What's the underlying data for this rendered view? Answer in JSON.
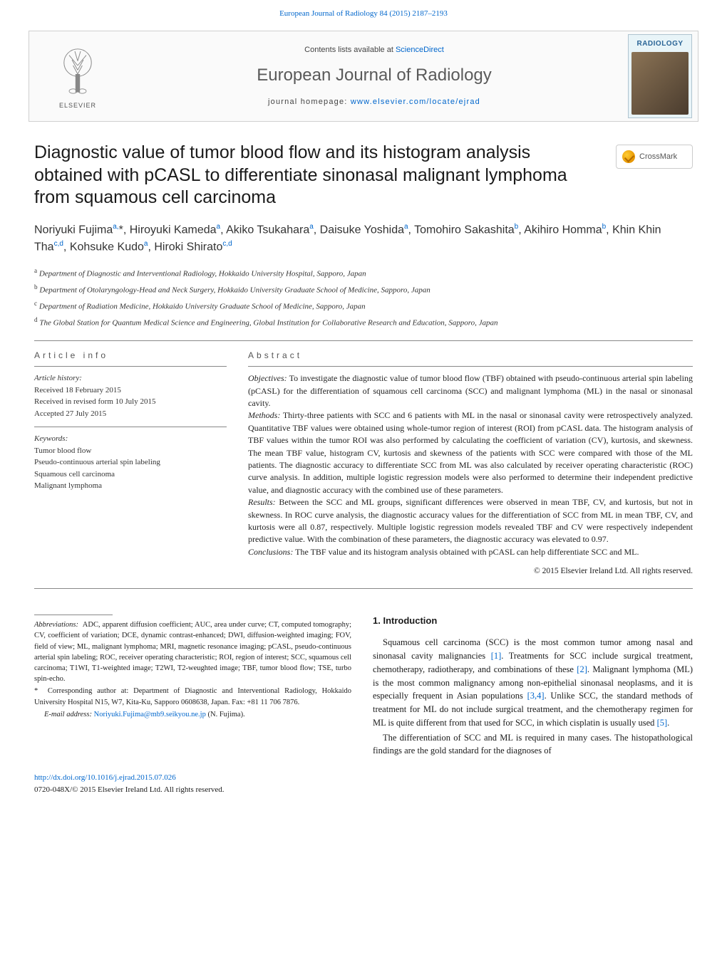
{
  "top_citation": "European Journal of Radiology 84 (2015) 2187–2193",
  "header": {
    "contents_prefix": "Contents lists available at ",
    "contents_link": "ScienceDirect",
    "journal_name": "European Journal of Radiology",
    "homepage_prefix": "journal homepage: ",
    "homepage_url": "www.elsevier.com/locate/ejrad",
    "elsevier_word": "ELSEVIER",
    "cover_label": "RADIOLOGY"
  },
  "crossmark_label": "CrossMark",
  "title": "Diagnostic value of tumor blood flow and its histogram analysis obtained with pCASL to differentiate sinonasal malignant lymphoma from squamous cell carcinoma",
  "authors_html": "Noriyuki Fujima<sup>a,</sup>*, Hiroyuki Kameda<sup>a</sup>, Akiko Tsukahara<sup>a</sup>, Daisuke Yoshida<sup>a</sup>, Tomohiro Sakashita<sup>b</sup>, Akihiro Homma<sup>b</sup>, Khin Khin Tha<sup>c,d</sup>, Kohsuke Kudo<sup>a</sup>, Hiroki Shirato<sup>c,d</sup>",
  "affiliations": [
    {
      "sup": "a",
      "text": "Department of Diagnostic and Interventional Radiology, Hokkaido University Hospital, Sapporo, Japan"
    },
    {
      "sup": "b",
      "text": "Department of Otolaryngology-Head and Neck Surgery, Hokkaido University Graduate School of Medicine, Sapporo, Japan"
    },
    {
      "sup": "c",
      "text": "Department of Radiation Medicine, Hokkaido University Graduate School of Medicine, Sapporo, Japan"
    },
    {
      "sup": "d",
      "text": "The Global Station for Quantum Medical Science and Engineering, Global Institution for Collaborative Research and Education, Sapporo, Japan"
    }
  ],
  "article_info": {
    "head": "ARTICLE INFO",
    "history_label": "Article history:",
    "history": [
      "Received 18 February 2015",
      "Received in revised form 10 July 2015",
      "Accepted 27 July 2015"
    ],
    "keywords_label": "Keywords:",
    "keywords": [
      "Tumor blood flow",
      "Pseudo-continuous arterial spin labeling",
      "Squamous cell carcinoma",
      "Malignant lymphoma"
    ]
  },
  "abstract": {
    "head": "ABSTRACT",
    "objectives_label": "Objectives:",
    "objectives": "To investigate the diagnostic value of tumor blood flow (TBF) obtained with pseudo-continuous arterial spin labeling (pCASL) for the differentiation of squamous cell carcinoma (SCC) and malignant lymphoma (ML) in the nasal or sinonasal cavity.",
    "methods_label": "Methods:",
    "methods": "Thirty-three patients with SCC and 6 patients with ML in the nasal or sinonasal cavity were retrospectively analyzed. Quantitative TBF values were obtained using whole-tumor region of interest (ROI) from pCASL data. The histogram analysis of TBF values within the tumor ROI was also performed by calculating the coefficient of variation (CV), kurtosis, and skewness. The mean TBF value, histogram CV, kurtosis and skewness of the patients with SCC were compared with those of the ML patients. The diagnostic accuracy to differentiate SCC from ML was also calculated by receiver operating characteristic (ROC) curve analysis. In addition, multiple logistic regression models were also performed to determine their independent predictive value, and diagnostic accuracy with the combined use of these parameters.",
    "results_label": "Results:",
    "results": "Between the SCC and ML groups, significant differences were observed in mean TBF, CV, and kurtosis, but not in skewness. In ROC curve analysis, the diagnostic accuracy values for the differentiation of SCC from ML in mean TBF, CV, and kurtosis were all 0.87, respectively. Multiple logistic regression models revealed TBF and CV were respectively independent predictive value. With the combination of these parameters, the diagnostic accuracy was elevated to 0.97.",
    "conclusions_label": "Conclusions:",
    "conclusions": "The TBF value and its histogram analysis obtained with pCASL can help differentiate SCC and ML.",
    "copyright": "© 2015 Elsevier Ireland Ltd. All rights reserved."
  },
  "footnotes": {
    "abbrev_label": "Abbreviations:",
    "abbrev": "ADC, apparent diffusion coefficient; AUC, area under curve; CT, computed tomography; CV, coefficient of variation; DCE, dynamic contrast-enhanced; DWI, diffusion-weighted imaging; FOV, field of view; ML, malignant lymphoma; MRI, magnetic resonance imaging; pCASL, pseudo-continuous arterial spin labeling; ROC, receiver operating characteristic; ROI, region of interest; SCC, squamous cell carcinoma; T1WI, T1-weighted image; T2WI, T2-weughted image; TBF, tumor blood flow; TSE, turbo spin-echo.",
    "corr_marker": "*",
    "corr": "Corresponding author at: Department of Diagnostic and Interventional Radiology, Hokkaido University Hospital N15, W7, Kita-Ku, Sapporo 0608638, Japan. Fax: +81 11 706 7876.",
    "email_label": "E-mail address:",
    "email": "Noriyuki.Fujima@mb9.seikyou.ne.jp",
    "email_suffix": "(N. Fujima)."
  },
  "intro": {
    "head": "1. Introduction",
    "p1_pre": "Squamous cell carcinoma (SCC) is the most common tumor among nasal and sinonasal cavity malignancies ",
    "ref1": "[1]",
    "p1_mid": ". Treatments for SCC include surgical treatment, chemotherapy, radiotherapy, and combinations of these ",
    "ref2": "[2]",
    "p1_mid2": ". Malignant lymphoma (ML) is the most common malignancy among non-epithelial sinonasal neoplasms, and it is especially frequent in Asian populations ",
    "ref34": "[3,4]",
    "p1_mid3": ". Unlike SCC, the standard methods of treatment for ML do not include surgical treatment, and the chemotherapy regimen for ML is quite different from that used for SCC, in which cisplatin is usually used ",
    "ref5": "[5]",
    "p1_end": ".",
    "p2": "The differentiation of SCC and ML is required in many cases. The histopathological findings are the gold standard for the diagnoses of"
  },
  "bottom": {
    "doi": "http://dx.doi.org/10.1016/j.ejrad.2015.07.026",
    "issn_line": "0720-048X/© 2015 Elsevier Ireland Ltd. All rights reserved."
  },
  "colors": {
    "link": "#0066cc",
    "text": "#1a1a1a",
    "gray": "#555555",
    "rule": "#888888"
  }
}
